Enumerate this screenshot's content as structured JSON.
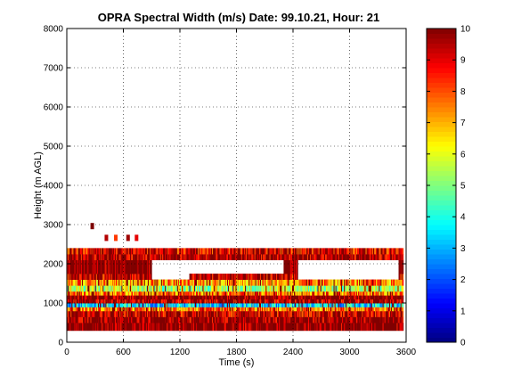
{
  "chart_data": {
    "type": "heatmap",
    "title": "OPRA Spectral Width (m/s)  Date: 99.10.21, Hour: 21",
    "xlabel": "Time (s)",
    "ylabel": "Height (m AGL)",
    "xlim": [
      0,
      3600
    ],
    "ylim": [
      0,
      8000
    ],
    "xticks": [
      "0",
      "600",
      "1200",
      "1800",
      "2400",
      "3000",
      "3600"
    ],
    "yticks": [
      "0",
      "1000",
      "2000",
      "3000",
      "4000",
      "5000",
      "6000",
      "7000",
      "8000"
    ],
    "grid": true,
    "colorbar": {
      "min": 0,
      "max": 10,
      "ticks": [
        "0",
        "1",
        "2",
        "3",
        "4",
        "5",
        "6",
        "7",
        "8",
        "9",
        "10"
      ],
      "colormap": "jet"
    },
    "bands": [
      {
        "h0": 300,
        "h1": 500,
        "value": 10
      },
      {
        "h0": 500,
        "h1": 650,
        "value": 9.8
      },
      {
        "h0": 650,
        "h1": 800,
        "value": 9.2
      },
      {
        "h0": 800,
        "h1": 900,
        "value": 7.5
      },
      {
        "h0": 900,
        "h1": 1000,
        "value": 3.5
      },
      {
        "h0": 1000,
        "h1": 1100,
        "value": 9.5
      },
      {
        "h0": 1100,
        "h1": 1200,
        "value": 10
      },
      {
        "h0": 1200,
        "h1": 1300,
        "value": 7.6
      },
      {
        "h0": 1300,
        "h1": 1450,
        "value": 5.5
      },
      {
        "h0": 1450,
        "h1": 1600,
        "value": 7.3
      },
      {
        "h0": 1600,
        "h1": 1750,
        "value": 9.3
      },
      {
        "h0": 1750,
        "h1": 2100,
        "value": 10
      },
      {
        "h0": 2100,
        "h1": 2250,
        "value": 9.6
      },
      {
        "h0": 2250,
        "h1": 2400,
        "value": 9.0
      }
    ],
    "gaps": [
      {
        "t0": 900,
        "t1": 1300,
        "h0": 1700,
        "h1": 2000
      },
      {
        "t0": 1300,
        "t1": 2300,
        "h0": 1800,
        "h1": 2000
      },
      {
        "t0": 2450,
        "t1": 3520,
        "h0": 1700,
        "h1": 2100
      }
    ],
    "blobs": [
      {
        "t": 270,
        "h": 2950,
        "value": 10
      },
      {
        "t": 420,
        "h": 2650,
        "value": 9.5
      },
      {
        "t": 520,
        "h": 2650,
        "value": 8.2
      },
      {
        "t": 650,
        "h": 2650,
        "value": 9.7
      },
      {
        "t": 740,
        "h": 2650,
        "value": 9.0
      }
    ]
  }
}
